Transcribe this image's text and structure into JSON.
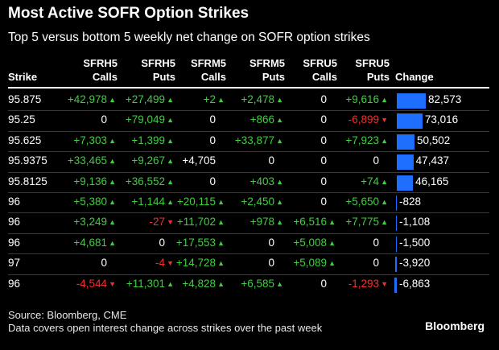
{
  "title": "Most Active SOFR Option Strikes",
  "subtitle": "Top 5 versus bottom 5 weekly net change on SOFR option strikes",
  "headers": {
    "strike": "Strike",
    "c1a": "SFRH5",
    "c1b": "Calls",
    "c2a": "SFRH5",
    "c2b": "Puts",
    "c3a": "SFRM5",
    "c3b": "Calls",
    "c4a": "SFRM5",
    "c4b": "Puts",
    "c5a": "SFRU5",
    "c5b": "Calls",
    "c6a": "SFRU5",
    "c6b": "Puts",
    "change": "Change"
  },
  "colors": {
    "positive": "#3ecf3e",
    "negative": "#f03030",
    "bar": "#1f6fff"
  },
  "source_line1": "Source: Bloomberg, CME",
  "source_line2": "Data covers open interest change across strikes over the past week",
  "brand": "Bloomberg",
  "chart_data": {
    "type": "table",
    "title": "Most Active SOFR Option Strikes",
    "columns": [
      "Strike",
      "SFRH5 Calls",
      "SFRH5 Puts",
      "SFRM5 Calls",
      "SFRM5 Puts",
      "SFRU5 Calls",
      "SFRU5 Puts",
      "Change"
    ],
    "bar_max": 82573,
    "rows": [
      {
        "strike": "95.875",
        "cells": [
          "+42,978",
          "+27,499",
          "+2",
          "+2,478",
          "0",
          "+9,616"
        ],
        "dirs": [
          "up",
          "up",
          "up",
          "up",
          "none",
          "up"
        ],
        "change": 82573,
        "change_label": "82,573"
      },
      {
        "strike": "95.25",
        "cells": [
          "0",
          "+79,049",
          "0",
          "+866",
          "0",
          "-6,899"
        ],
        "dirs": [
          "none",
          "up",
          "none",
          "up",
          "none",
          "down"
        ],
        "change": 73016,
        "change_label": "73,016"
      },
      {
        "strike": "95.625",
        "cells": [
          "+7,303",
          "+1,399",
          "0",
          "+33,877",
          "0",
          "+7,923"
        ],
        "dirs": [
          "up",
          "up",
          "none",
          "up",
          "none",
          "up"
        ],
        "change": 50502,
        "change_label": "50,502"
      },
      {
        "strike": "95.9375",
        "cells": [
          "+33,465",
          "+9,267",
          "+4,705",
          "0",
          "0",
          "0"
        ],
        "dirs": [
          "up",
          "up",
          "none",
          "none",
          "none",
          "none"
        ],
        "change": 47437,
        "change_label": "47,437"
      },
      {
        "strike": "95.8125",
        "cells": [
          "+9,136",
          "+36,552",
          "0",
          "+403",
          "0",
          "+74"
        ],
        "dirs": [
          "up",
          "up",
          "none",
          "up",
          "none",
          "up"
        ],
        "change": 46165,
        "change_label": "46,165"
      },
      {
        "strike": "96",
        "cells": [
          "+5,380",
          "+1,144",
          "+20,115",
          "+2,450",
          "0",
          "+5,650"
        ],
        "dirs": [
          "up",
          "up",
          "up",
          "up",
          "none",
          "up"
        ],
        "change": -828,
        "change_label": "-828"
      },
      {
        "strike": "96",
        "cells": [
          "+3,249",
          "-27",
          "+11,702",
          "+978",
          "+6,516",
          "+7,775"
        ],
        "dirs": [
          "up",
          "down",
          "up",
          "up",
          "up",
          "up"
        ],
        "change": -1108,
        "change_label": "-1,108"
      },
      {
        "strike": "96",
        "cells": [
          "+4,681",
          "0",
          "+17,553",
          "0",
          "+5,008",
          "0"
        ],
        "dirs": [
          "up",
          "none",
          "up",
          "none",
          "up",
          "none"
        ],
        "change": -1500,
        "change_label": "-1,500"
      },
      {
        "strike": "97",
        "cells": [
          "0",
          "-4",
          "+14,728",
          "0",
          "+5,089",
          "0"
        ],
        "dirs": [
          "none",
          "down",
          "up",
          "none",
          "up",
          "none"
        ],
        "change": -3920,
        "change_label": "-3,920"
      },
      {
        "strike": "96",
        "cells": [
          "-4,544",
          "+11,301",
          "+4,828",
          "+6,585",
          "0",
          "-1,293"
        ],
        "dirs": [
          "down",
          "up",
          "up",
          "up",
          "none",
          "down"
        ],
        "change": -6863,
        "change_label": "-6,863"
      }
    ]
  }
}
